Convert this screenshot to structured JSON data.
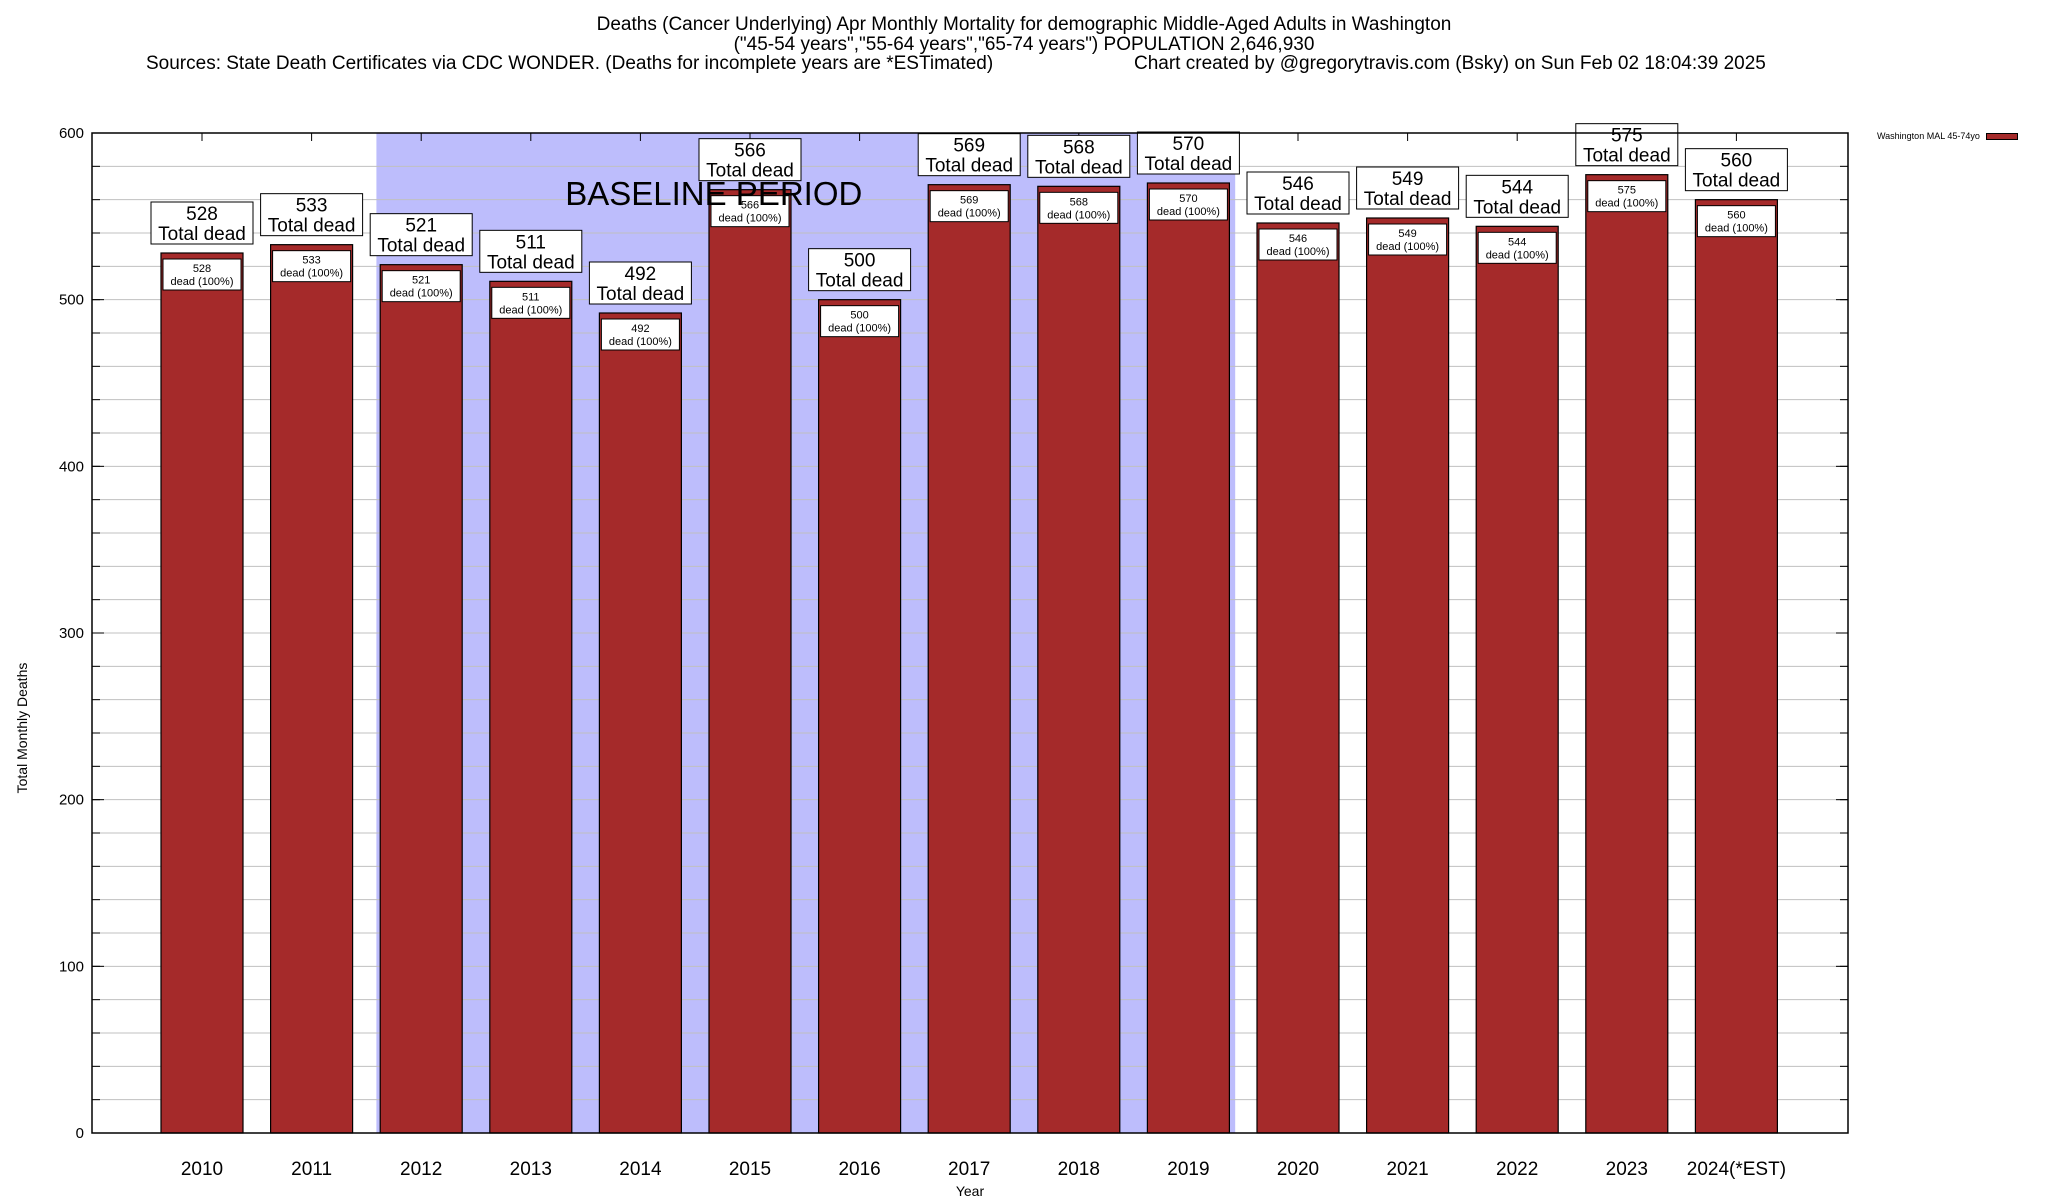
{
  "header": {
    "line1": "Deaths (Cancer Underlying) Apr Monthly Mortality for demographic Middle-Aged Adults in Washington",
    "line2": "(\"45-54 years\",\"55-64 years\",\"65-74 years\") POPULATION 2,646,930",
    "line3_sources": "Sources: State Death Certificates via CDC WONDER. (Deaths for incomplete years are *ESTimated)",
    "line3_credit": "Chart created by @gregorytravis.com (Bsky) on Sun Feb 02 18:04:39 2025"
  },
  "legend": {
    "label": "Washington MAL 45-74yo"
  },
  "colors": {
    "bar": "#a52a2a",
    "baseline_shade": "#bdbdfc",
    "grid": "#c0c0c0"
  },
  "chart_data": {
    "type": "bar",
    "title": "Deaths (Cancer Underlying) Apr Monthly Mortality for demographic Middle-Aged Adults in Washington",
    "xlabel": "Year",
    "ylabel": "Total Monthly Deaths",
    "ylim": [
      0,
      600
    ],
    "yticks": [
      0,
      100,
      200,
      300,
      400,
      500,
      600
    ],
    "minor_step": 20,
    "grid": true,
    "legend_position": "top-right-outside",
    "categories": [
      "2010",
      "2011",
      "2012",
      "2013",
      "2014",
      "2015",
      "2016",
      "2017",
      "2018",
      "2019",
      "2020",
      "2021",
      "2022",
      "2023",
      "2024(*EST)"
    ],
    "series": [
      {
        "name": "Washington MAL 45-74yo",
        "values": [
          528,
          533,
          521,
          511,
          492,
          566,
          500,
          569,
          568,
          570,
          546,
          549,
          544,
          575,
          560
        ]
      }
    ],
    "total_label_suffix": "Total dead",
    "inner_label_suffix": "dead (100%)",
    "annotation": {
      "text": "BASELINE PERIOD",
      "from_category": "2012",
      "to_category": "2019"
    }
  }
}
